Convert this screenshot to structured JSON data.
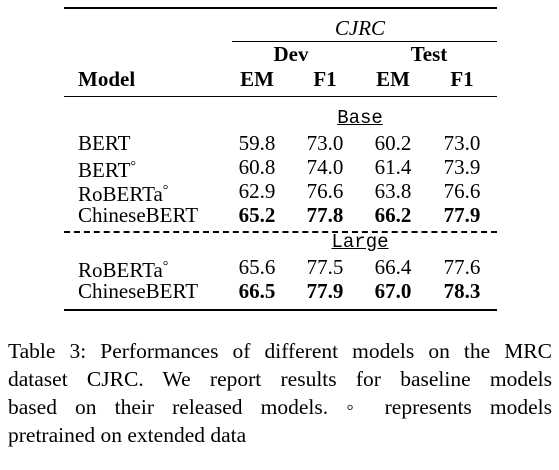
{
  "table": {
    "dataset": "CJRC",
    "groups": [
      "Dev",
      "Test"
    ],
    "model_header": "Model",
    "metrics": [
      "EM",
      "F1",
      "EM",
      "F1"
    ],
    "sections": [
      {
        "name": "Base",
        "rows": [
          {
            "model": "BERT",
            "values": [
              "59.8",
              "73.0",
              "60.2",
              "73.0"
            ],
            "bold": false
          },
          {
            "model": "BERT°",
            "values": [
              "60.8",
              "74.0",
              "61.4",
              "73.9"
            ],
            "bold": false
          },
          {
            "model": "RoBERTa°",
            "values": [
              "62.9",
              "76.6",
              "63.8",
              "76.6"
            ],
            "bold": false
          },
          {
            "model": "ChineseBERT",
            "values": [
              "65.2",
              "77.8",
              "66.2",
              "77.9"
            ],
            "bold": true
          }
        ]
      },
      {
        "name": "Large",
        "rows": [
          {
            "model": "RoBERTa°",
            "values": [
              "65.6",
              "77.5",
              "66.4",
              "77.6"
            ],
            "bold": false
          },
          {
            "model": "ChineseBERT",
            "values": [
              "66.5",
              "77.9",
              "67.0",
              "78.3"
            ],
            "bold": true
          }
        ]
      }
    ]
  },
  "caption": {
    "lines": [
      "Table 3: Performances of different models on the MRC",
      "dataset CJRC. We report results for baseline models",
      "based on their released models.  ◦ represents models",
      "pretrained on extended data"
    ]
  }
}
